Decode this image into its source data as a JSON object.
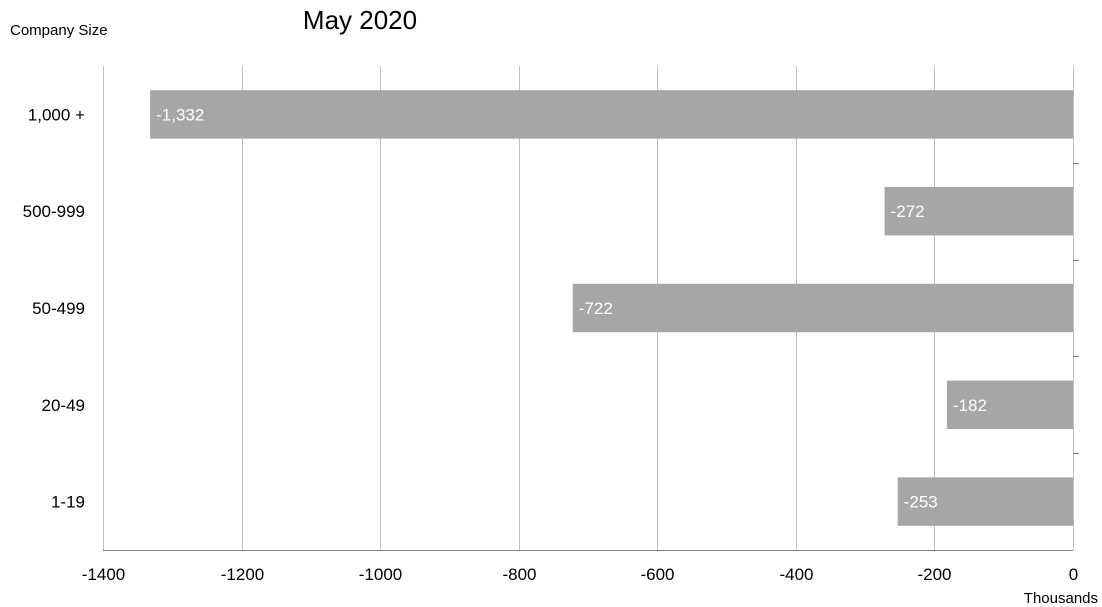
{
  "chart_data": {
    "type": "bar",
    "orientation": "horizontal",
    "title": "May 2020",
    "ylabel": "Company Size",
    "xlabel": "",
    "unit_label": "Thousands",
    "categories": [
      "1,000 +",
      "500-999",
      "50-499",
      "20-49",
      "1-19"
    ],
    "values": [
      -1332,
      -272,
      -722,
      -182,
      -253
    ],
    "data_labels": [
      "-1,332",
      "-272",
      "-722",
      "-182",
      "-253"
    ],
    "xlim": [
      -1400,
      0
    ],
    "xticks": [
      -1400,
      -1200,
      -1000,
      -800,
      -600,
      -400,
      -200,
      0
    ],
    "xtick_labels": [
      "-1400",
      "-1200",
      "-1000",
      "-800",
      "-600",
      "-400",
      "-200",
      "0"
    ],
    "grid": true,
    "legend": "none",
    "colors": {
      "bar": "#a6a6a6",
      "grid": "#bfbfbf",
      "label": "#ffffff"
    }
  }
}
